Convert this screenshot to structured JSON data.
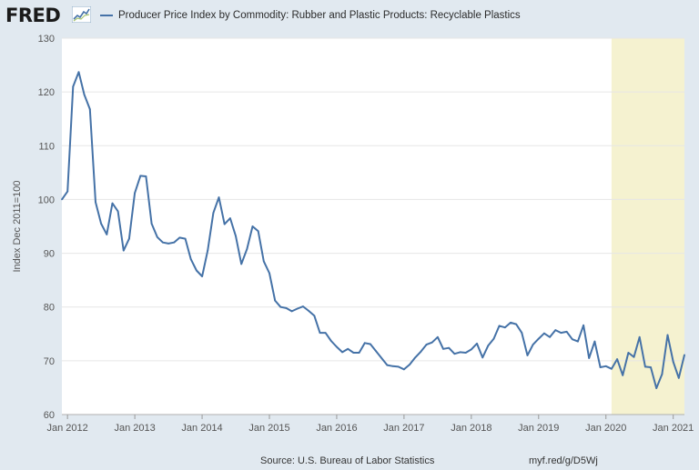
{
  "header": {
    "logo_text": "FRED",
    "logo_icon": "trend-line-icon",
    "legend_label": "Producer Price Index by Commodity: Rubber and Plastic Products: Recyclable Plastics"
  },
  "footer": {
    "source": "Source: U.S. Bureau of Labor Statistics",
    "url": "myf.red/g/D5Wj"
  },
  "colors": {
    "series": "#4572a7",
    "recession": "#f5f2d0",
    "background": "#e1e9f0"
  },
  "chart_data": {
    "type": "line",
    "title": "",
    "xlabel": "",
    "ylabel": "Index Dec 2011=100",
    "ylim": [
      60,
      130
    ],
    "yticks": [
      60,
      70,
      80,
      90,
      100,
      110,
      120,
      130
    ],
    "xlim": [
      "2011-12",
      "2021-03"
    ],
    "xticks": [
      {
        "date": "2012-01",
        "label": "Jan 2012"
      },
      {
        "date": "2013-01",
        "label": "Jan 2013"
      },
      {
        "date": "2014-01",
        "label": "Jan 2014"
      },
      {
        "date": "2015-01",
        "label": "Jan 2015"
      },
      {
        "date": "2016-01",
        "label": "Jan 2016"
      },
      {
        "date": "2017-01",
        "label": "Jan 2017"
      },
      {
        "date": "2018-01",
        "label": "Jan 2018"
      },
      {
        "date": "2019-01",
        "label": "Jan 2019"
      },
      {
        "date": "2020-01",
        "label": "Jan 2020"
      },
      {
        "date": "2021-01",
        "label": "Jan 2021"
      }
    ],
    "grid": true,
    "shaded_ranges": [
      {
        "start": "2020-02",
        "end": "2021-03"
      }
    ],
    "series": [
      {
        "name": "Producer Price Index by Commodity: Rubber and Plastic Products: Recyclable Plastics",
        "color": "#4572a7",
        "x": [
          "2011-12",
          "2012-01",
          "2012-02",
          "2012-03",
          "2012-04",
          "2012-05",
          "2012-06",
          "2012-07",
          "2012-08",
          "2012-09",
          "2012-10",
          "2012-11",
          "2012-12",
          "2013-01",
          "2013-02",
          "2013-03",
          "2013-04",
          "2013-05",
          "2013-06",
          "2013-07",
          "2013-08",
          "2013-09",
          "2013-10",
          "2013-11",
          "2013-12",
          "2014-01",
          "2014-02",
          "2014-03",
          "2014-04",
          "2014-05",
          "2014-06",
          "2014-07",
          "2014-08",
          "2014-09",
          "2014-10",
          "2014-11",
          "2014-12",
          "2015-01",
          "2015-02",
          "2015-03",
          "2015-04",
          "2015-05",
          "2015-06",
          "2015-07",
          "2015-08",
          "2015-09",
          "2015-10",
          "2015-11",
          "2015-12",
          "2016-01",
          "2016-02",
          "2016-03",
          "2016-04",
          "2016-05",
          "2016-06",
          "2016-07",
          "2016-08",
          "2016-09",
          "2016-10",
          "2016-11",
          "2016-12",
          "2017-01",
          "2017-02",
          "2017-03",
          "2017-04",
          "2017-05",
          "2017-06",
          "2017-07",
          "2017-08",
          "2017-09",
          "2017-10",
          "2017-11",
          "2017-12",
          "2018-01",
          "2018-02",
          "2018-03",
          "2018-04",
          "2018-05",
          "2018-06",
          "2018-07",
          "2018-08",
          "2018-09",
          "2018-10",
          "2018-11",
          "2018-12",
          "2019-01",
          "2019-02",
          "2019-03",
          "2019-04",
          "2019-05",
          "2019-06",
          "2019-07",
          "2019-08",
          "2019-09",
          "2019-10",
          "2019-11",
          "2019-12",
          "2020-01",
          "2020-02",
          "2020-03",
          "2020-04",
          "2020-05",
          "2020-06",
          "2020-07",
          "2020-08",
          "2020-09",
          "2020-10",
          "2020-11",
          "2020-12",
          "2021-01",
          "2021-02",
          "2021-03"
        ],
        "values": [
          100.0,
          101.5,
          121.0,
          123.7,
          119.5,
          116.8,
          99.5,
          95.5,
          93.5,
          99.3,
          97.8,
          90.5,
          92.7,
          101.2,
          104.4,
          104.3,
          95.5,
          93.0,
          92.0,
          91.8,
          92.0,
          92.9,
          92.7,
          88.9,
          86.8,
          85.7,
          90.5,
          97.5,
          100.4,
          95.4,
          96.5,
          93.2,
          88.0,
          90.8,
          95.0,
          94.1,
          88.5,
          86.3,
          81.2,
          80.0,
          79.8,
          79.2,
          79.7,
          80.1,
          79.3,
          78.4,
          75.2,
          75.2,
          73.7,
          72.6,
          71.6,
          72.2,
          71.5,
          71.5,
          73.3,
          73.1,
          71.8,
          70.5,
          69.2,
          69.0,
          68.9,
          68.4,
          69.3,
          70.6,
          71.7,
          73.0,
          73.4,
          74.4,
          72.2,
          72.4,
          71.3,
          71.6,
          71.5,
          72.1,
          73.2,
          70.6,
          72.8,
          74.1,
          76.5,
          76.2,
          77.1,
          76.8,
          75.2,
          71.0,
          73.0,
          74.1,
          75.1,
          74.4,
          75.7,
          75.2,
          75.4,
          74.0,
          73.6,
          76.6,
          70.5,
          73.6,
          68.8,
          69.0,
          68.5,
          70.3,
          67.3,
          71.5,
          70.7,
          74.4,
          68.9,
          68.8,
          64.9,
          67.5,
          74.8,
          69.8,
          66.8,
          71.1
        ]
      }
    ]
  }
}
